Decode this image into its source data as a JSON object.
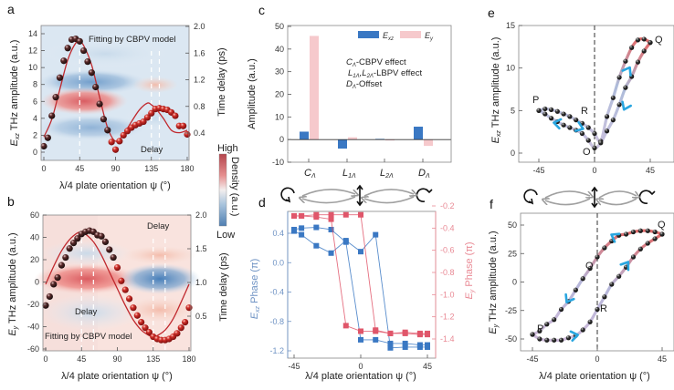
{
  "figure": {
    "panel_labels": [
      "a",
      "b",
      "c",
      "d",
      "e",
      "f"
    ],
    "colorbar": {
      "high": "High",
      "low": "Low",
      "label": "Density (a.u.)"
    },
    "colors": {
      "blue": "#3a78c3",
      "pink": "#f6c9cc",
      "red_fit": "#c0282d",
      "d_blue": "#3a78c3",
      "d_red": "#e0566a",
      "arrow_cyan": "#29a6e0"
    },
    "polarization_icons": [
      "counterclockwise-circular-icon",
      "double-arrow-icon",
      "linear-vertical-icon",
      "double-arrow-icon",
      "clockwise-circular-icon"
    ]
  },
  "chart_data": [
    {
      "id": "a",
      "type": "scatter",
      "title": "",
      "xlabel": "λ/4 plate orientation ψ  (°)",
      "ylabel": "Exz THz amplitude (a.u.)",
      "ylabel_sub": "xz",
      "y2label": "Time delay (ps)",
      "xlim": [
        0,
        180
      ],
      "ylim": [
        -0.5,
        15
      ],
      "y2lim": [
        0,
        2.0
      ],
      "xticks": [
        0,
        45,
        90,
        135,
        180
      ],
      "yticks": [
        0,
        2,
        4,
        6,
        8,
        10,
        12,
        14
      ],
      "y2ticks": [
        0.4,
        0.8,
        1.2,
        1.6,
        2.0
      ],
      "y2ticklabels": [
        "0.4",
        "0.8",
        "1.2",
        "1.6",
        "2.0"
      ],
      "annotations": [
        "Fitting by CBPV model",
        "Delay"
      ],
      "dashed_lines_x": [
        45,
        135,
        145
      ],
      "series": [
        {
          "name": "data",
          "x": [
            0,
            5,
            10,
            15,
            20,
            25,
            30,
            35,
            40,
            45,
            50,
            55,
            60,
            65,
            70,
            75,
            80,
            85,
            90,
            95,
            100,
            105,
            110,
            115,
            120,
            125,
            130,
            135,
            140,
            145,
            150,
            155,
            160,
            165,
            170,
            175,
            180
          ],
          "y": [
            0.7,
            1.7,
            4.3,
            6.5,
            8.8,
            10.8,
            12.3,
            13.3,
            13.4,
            13.1,
            12.0,
            10.7,
            9.4,
            7.7,
            5.7,
            3.9,
            2.6,
            1.2,
            0.3,
            1.3,
            2.0,
            2.5,
            2.9,
            3.2,
            3.4,
            3.6,
            4.1,
            4.6,
            5.1,
            5.2,
            5.1,
            5.0,
            4.7,
            4.3,
            3.1,
            3.1,
            2.1
          ]
        },
        {
          "name": "Fitting by CBPV model",
          "type": "line",
          "x": [
            0,
            10,
            20,
            30,
            40,
            45,
            50,
            60,
            70,
            80,
            90,
            100,
            110,
            120,
            130,
            135,
            140,
            150,
            160,
            170,
            180
          ],
          "y": [
            1.8,
            3.9,
            7.4,
            10.9,
            12.9,
            13.0,
            12.6,
            10.3,
            6.5,
            2.9,
            1.3,
            2.1,
            3.6,
            5.0,
            5.8,
            5.6,
            5.2,
            4.0,
            2.6,
            2.3,
            2.6
          ]
        }
      ]
    },
    {
      "id": "b",
      "type": "scatter",
      "xlabel": "λ/4 plate orientation ψ (°)",
      "ylabel": "Ey THz amplitude (a.u.)",
      "ylabel_sub": "y",
      "y2label": "Time delay (ps)",
      "xlim": [
        0,
        180
      ],
      "ylim": [
        -60,
        60
      ],
      "y2lim": [
        0,
        2.0
      ],
      "xticks": [
        0,
        45,
        90,
        135,
        180
      ],
      "yticks": [
        -60,
        -40,
        -20,
        0,
        20,
        40,
        60
      ],
      "y2ticks": [
        0.5,
        1.0,
        1.5,
        2.0
      ],
      "y2ticklabels": [
        "0.5",
        "1.0",
        "1.5",
        "2.0"
      ],
      "annotations": [
        "Delay",
        "Delay",
        "Fitting by CBPV model"
      ],
      "dashed_lines_x": [
        45,
        60,
        135,
        150
      ],
      "series": [
        {
          "name": "data",
          "x": [
            0,
            5,
            10,
            15,
            20,
            25,
            30,
            35,
            40,
            45,
            50,
            55,
            60,
            65,
            70,
            75,
            80,
            85,
            90,
            95,
            100,
            105,
            110,
            115,
            120,
            125,
            130,
            135,
            140,
            145,
            150,
            155,
            160,
            165,
            170,
            175,
            180
          ],
          "y": [
            -21,
            -13,
            -2,
            4,
            15,
            22,
            30,
            35,
            39,
            43,
            45,
            46,
            45,
            42,
            41,
            36,
            29,
            22,
            13,
            1,
            -7,
            -15,
            -23,
            -30,
            -36,
            -41,
            -45,
            -49,
            -51,
            -52,
            -52,
            -51,
            -49,
            -46,
            -41,
            -36,
            -23
          ]
        },
        {
          "name": "Fitting by CBPV model",
          "type": "line",
          "x": [
            0,
            10,
            20,
            30,
            40,
            45,
            50,
            60,
            70,
            80,
            90,
            100,
            110,
            120,
            130,
            135,
            140,
            150,
            160,
            170,
            180
          ],
          "y": [
            -2,
            14,
            28,
            38,
            44,
            44.5,
            43,
            36,
            24,
            9,
            -6,
            -21,
            -34,
            -43,
            -48,
            -49,
            -48,
            -43,
            -33,
            -18,
            -2
          ]
        }
      ]
    },
    {
      "id": "c",
      "type": "bar",
      "xlabel": "",
      "ylabel": "Amplitude (a.u.)",
      "ylim": [
        -10,
        50
      ],
      "yticks": [
        -10,
        0,
        10,
        20,
        30,
        40,
        50
      ],
      "categories": [
        "CΛ",
        "L1Λ",
        "L2Λ",
        "DΛ"
      ],
      "category_labels": [
        {
          "main": "C",
          "sub": "Λ"
        },
        {
          "main": "L",
          "sub": "1Λ"
        },
        {
          "main": "L",
          "sub": "2Λ"
        },
        {
          "main": "D",
          "sub": "Λ"
        }
      ],
      "legend": [
        {
          "name": "Exz",
          "main": "E",
          "sub": "xz"
        },
        {
          "name": "Ey",
          "main": "E",
          "sub": "y"
        }
      ],
      "legend_position": "top-right",
      "annotations": [
        {
          "main": "C",
          "sub": "Λ",
          "rest": "-CBPV effect"
        },
        {
          "main": "L",
          "sub": "1Λ",
          "mid": ",L",
          "sub2": "2Λ",
          "rest": "-LBPV effect"
        },
        {
          "main": "D",
          "sub": "Λ",
          "rest": "-Offset"
        }
      ],
      "series": [
        {
          "name": "Exz",
          "values": [
            3.5,
            -4.0,
            0.3,
            5.7
          ]
        },
        {
          "name": "Ey",
          "values": [
            45.8,
            1.0,
            -0.4,
            -2.8
          ]
        }
      ]
    },
    {
      "id": "d",
      "type": "line",
      "xlabel": "λ/4 plate orientation ψ (°)",
      "ylabel": "Exz Phase (π)",
      "y2label": "Ey Phase (π)",
      "xlim": [
        -50,
        50
      ],
      "xticks": [
        -45,
        0,
        45
      ],
      "ylim": [
        -1.3,
        0.65
      ],
      "yticks": [
        -1.2,
        -0.8,
        -0.4,
        0.0,
        0.4
      ],
      "yticklabels": [
        "-1.2",
        "-0.8",
        "-0.4",
        "0.0",
        "0.4"
      ],
      "y2lim": [
        -1.5,
        -0.17
      ],
      "y2ticks": [
        -1.4,
        -1.2,
        -1.0,
        -0.8,
        -0.6,
        -0.4,
        -0.2
      ],
      "y2ticklabels": [
        "-1.4",
        "-1.2",
        "-1.0",
        "-0.8",
        "-0.6",
        "-0.4",
        "-0.2"
      ],
      "series": [
        {
          "name": "Exz forward",
          "axis": "left",
          "color": "blue",
          "x": [
            -45,
            -40,
            -30,
            -20,
            -10,
            0,
            10,
            20,
            30,
            40,
            45
          ],
          "y": [
            0.43,
            0.38,
            0.23,
            0.13,
            0.3,
            0.15,
            0.38,
            -1.16,
            -1.15,
            -1.15,
            -1.15
          ]
        },
        {
          "name": "Exz backward",
          "axis": "left",
          "color": "blue",
          "x": [
            -45,
            -40,
            -30,
            -20,
            -10,
            0,
            10,
            20,
            30,
            40,
            45
          ],
          "y": [
            0.45,
            0.47,
            0.48,
            0.45,
            0.28,
            -1.05,
            -1.05,
            -1.1,
            -1.1,
            -1.12,
            -1.12
          ]
        },
        {
          "name": "Ey forward",
          "axis": "right",
          "color": "red",
          "x": [
            -45,
            -40,
            -30,
            -20,
            -10,
            0,
            10,
            20,
            30,
            40,
            45
          ],
          "y": [
            -0.29,
            -0.29,
            -0.28,
            -0.28,
            -0.28,
            -0.28,
            -1.32,
            -1.35,
            -1.34,
            -1.35,
            -1.35
          ]
        },
        {
          "name": "Ey backward",
          "axis": "right",
          "color": "red",
          "x": [
            -45,
            -40,
            -30,
            -20,
            -10,
            0,
            10,
            20,
            30,
            40,
            45
          ],
          "y": [
            -0.29,
            -0.29,
            -0.3,
            -0.32,
            -1.28,
            -1.33,
            -1.33,
            -1.35,
            -1.35,
            -1.36,
            -1.36
          ]
        }
      ]
    },
    {
      "id": "e",
      "type": "scatter",
      "xlabel": "",
      "ylabel": "Exz THz amplitude (a.u.)",
      "xlim": [
        -50,
        52
      ],
      "ylim": [
        -1,
        15
      ],
      "xticks": [
        -45,
        0,
        45
      ],
      "yticks": [
        0,
        5,
        10,
        15
      ],
      "point_labels": [
        "P",
        "R",
        "O",
        "Q"
      ],
      "series": [
        {
          "name": "upper loop",
          "x": [
            -45,
            -40,
            -35,
            -30,
            -25,
            -20,
            -15,
            -10,
            -5,
            0,
            5,
            10,
            15,
            20,
            25,
            30,
            35,
            40,
            45
          ],
          "y": [
            5.0,
            5.2,
            5.1,
            4.9,
            4.6,
            4.3,
            3.9,
            3.5,
            3.0,
            2.3,
            1.4,
            4.3,
            6.5,
            8.9,
            10.8,
            12.4,
            13.3,
            13.4,
            13.0
          ]
        },
        {
          "name": "lower loop",
          "x": [
            45,
            40,
            35,
            30,
            25,
            20,
            15,
            10,
            5,
            0,
            -5,
            -10,
            -15,
            -20,
            -25,
            -30,
            -35,
            -40,
            -45
          ],
          "y": [
            13.0,
            12.0,
            10.7,
            9.0,
            7.7,
            5.7,
            3.9,
            2.6,
            1.2,
            0.6,
            1.5,
            2.3,
            2.7,
            3.0,
            3.3,
            3.7,
            4.1,
            4.6,
            5.0
          ]
        }
      ]
    },
    {
      "id": "f",
      "type": "scatter",
      "xlabel": "λ/4 plate orientation ψ (°)",
      "ylabel": "Ey THz amplitude (a.u.)",
      "xlim": [
        -50,
        50
      ],
      "ylim": [
        -60,
        62
      ],
      "xticks": [
        -45,
        0,
        45
      ],
      "yticks": [
        -50,
        -25,
        0,
        25,
        50
      ],
      "point_labels": [
        "P",
        "R",
        "O",
        "Q"
      ],
      "series": [
        {
          "name": "upper branch",
          "x": [
            -45,
            -40,
            -35,
            -30,
            -25,
            -20,
            -15,
            -10,
            -5,
            0,
            5,
            10,
            15,
            20,
            25,
            30,
            35,
            40,
            45
          ],
          "y": [
            -46,
            -43,
            -37,
            -33,
            -24,
            -17,
            -7,
            3,
            12,
            22,
            30,
            36,
            41,
            42,
            44,
            45,
            45,
            44,
            42
          ]
        },
        {
          "name": "lower branch",
          "x": [
            45,
            40,
            35,
            30,
            25,
            20,
            15,
            10,
            5,
            0,
            -5,
            -10,
            -15,
            -20,
            -25,
            -30,
            -35,
            -40,
            -45
          ],
          "y": [
            42,
            38,
            34,
            29,
            22,
            13,
            5,
            -2,
            -13,
            -24,
            -35,
            -42,
            -47,
            -49,
            -51,
            -51,
            -51,
            -50,
            -46
          ]
        }
      ]
    }
  ]
}
